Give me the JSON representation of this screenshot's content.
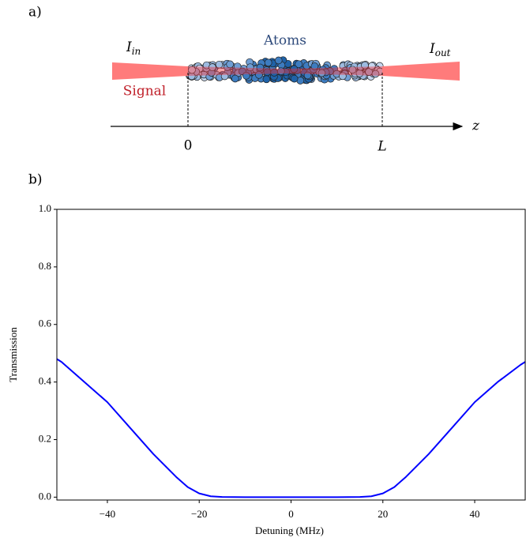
{
  "diagram": {
    "panel_label": "a)",
    "input_intensity": {
      "symbol": "I",
      "subscript": "in"
    },
    "output_intensity": {
      "symbol": "I",
      "subscript": "out"
    },
    "atoms_label": "Atoms",
    "signal_label": "Signal",
    "axis_label": "z",
    "start_label": "0",
    "end_label": "L"
  },
  "chart_data": {
    "type": "line",
    "panel_label": "b)",
    "xlabel": "Detuning (MHz)",
    "ylabel": "Transmission",
    "x": [
      -51,
      -50,
      -45,
      -40,
      -35,
      -30,
      -25,
      -22.5,
      -20,
      -17.5,
      -15,
      -10,
      -5,
      0,
      5,
      10,
      15,
      17.5,
      20,
      22.5,
      25,
      30,
      35,
      40,
      45,
      50,
      51
    ],
    "series": [
      {
        "name": "Transmission",
        "color": "#0000ff",
        "values": [
          0.48,
          0.47,
          0.4,
          0.33,
          0.24,
          0.15,
          0.07,
          0.035,
          0.013,
          0.003,
          0.0005,
          0,
          0,
          0,
          0,
          0,
          0.0005,
          0.003,
          0.013,
          0.035,
          0.07,
          0.15,
          0.24,
          0.33,
          0.4,
          0.46,
          0.47
        ]
      }
    ],
    "xlim": [
      -51,
      51
    ],
    "ylim": [
      -0.01,
      1.0
    ],
    "xticks": [
      {
        "value": -40,
        "label": "−40"
      },
      {
        "value": -20,
        "label": "−20"
      },
      0,
      20,
      40
    ],
    "yticks": [
      {
        "value": 0,
        "label": "0.0"
      },
      {
        "value": 0.2,
        "label": "0.2"
      },
      {
        "value": 0.4,
        "label": "0.4"
      },
      {
        "value": 0.6,
        "label": "0.6"
      },
      {
        "value": 0.8,
        "label": "0.8"
      },
      {
        "value": 1.0,
        "label": "1.0"
      }
    ],
    "grid": false
  }
}
